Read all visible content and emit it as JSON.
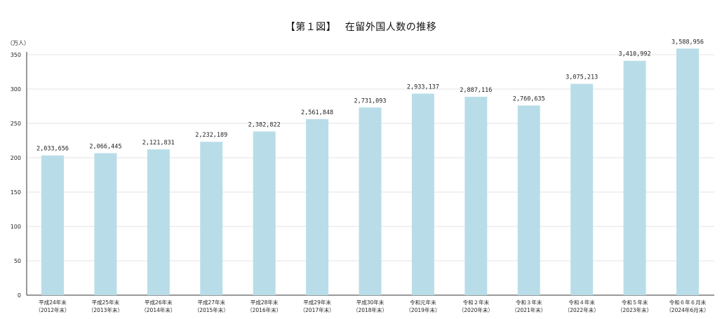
{
  "chart_data": {
    "type": "bar",
    "title": "【第１図】　 在留外国人数の推移",
    "ylabel": "（万人）",
    "ylim": [
      0,
      350
    ],
    "yticks": [
      0,
      50,
      100,
      150,
      200,
      250,
      300,
      350
    ],
    "grid": true,
    "bar_color": "#b8dde8",
    "categories": [
      [
        "平成24年末",
        "（2012年末）"
      ],
      [
        "平成25年末",
        "（2013年末）"
      ],
      [
        "平成26年末",
        "（2014年末）"
      ],
      [
        "平成27年末",
        "（2015年末）"
      ],
      [
        "平成28年末",
        "（2016年末）"
      ],
      [
        "平成29年末",
        "（2017年末）"
      ],
      [
        "平成30年末",
        "（2018年末）"
      ],
      [
        "令和元年末",
        "（2019年末）"
      ],
      [
        "令和２年末",
        "（2020年末）"
      ],
      [
        "令和３年末",
        "（2021年末）"
      ],
      [
        "令和４年末",
        "（2022年末）"
      ],
      [
        "令和５年末",
        "（2023年末）"
      ],
      [
        "令和６年６月末",
        "（2024年6月末）"
      ]
    ],
    "values": [
      2033656,
      2066445,
      2121831,
      2232189,
      2382822,
      2561848,
      2731093,
      2933137,
      2887116,
      2760635,
      3075213,
      3410992,
      3588956
    ],
    "data_labels": [
      "2,033,656",
      "2,066,445",
      "2,121,831",
      "2,232,189",
      "2,382,822",
      "2,561,848",
      "2,731,093",
      "2,933,137",
      "2,887,116",
      "2,760,635",
      "3,075,213",
      "3,410,992",
      "3,588,956"
    ]
  }
}
